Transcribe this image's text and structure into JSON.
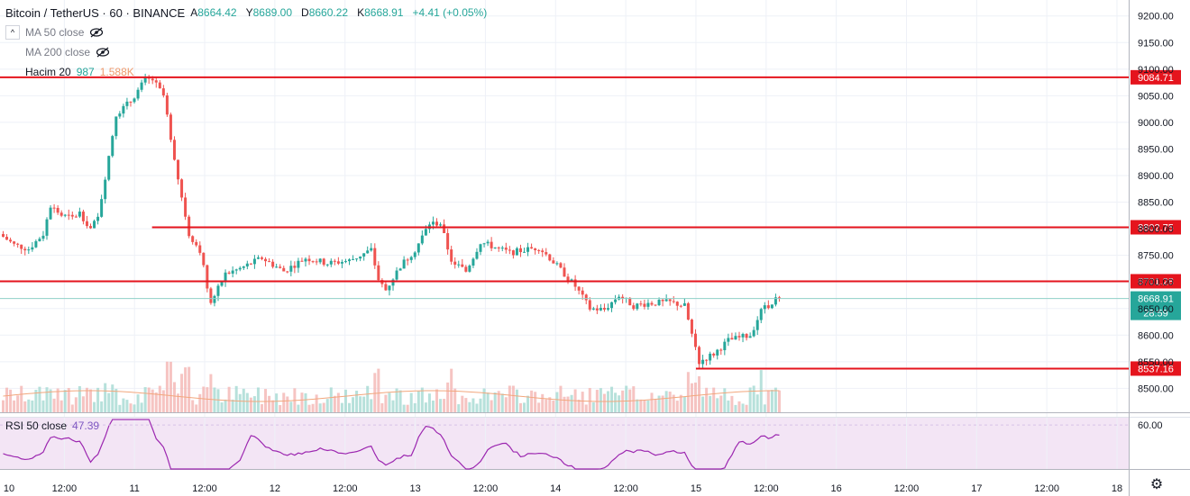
{
  "header": {
    "symbol": "Bitcoin / TetherUS",
    "interval": "60",
    "exchange": "BINANCE",
    "open_label": "A",
    "open": "8664.42",
    "high_label": "Y",
    "high": "8689.00",
    "low_label": "D",
    "low": "8660.22",
    "close_label": "K",
    "close": "8668.91",
    "change": "+4.41 (+0.05%)"
  },
  "indicators": {
    "ma50": "MA 50 close",
    "ma200": "MA 200 close",
    "volume_name": "Hacim 20",
    "volume_value": "987",
    "volume_ma_value": "1.588K",
    "rsi_name": "RSI 50 close",
    "rsi_value": "47.39"
  },
  "colors": {
    "up": "#26a69a",
    "down": "#ef5350",
    "level": "#e5141d",
    "rsi": "#9c27b0",
    "rsi_bg": "#f3e5f5",
    "vol_ma": "#f2a77d",
    "price_line": "#26a69a"
  },
  "chart_data": {
    "type": "candlestick",
    "title": "Bitcoin / TetherUS 60 BINANCE",
    "price_axis": {
      "ticks": [
        "9200.00",
        "9150.00",
        "9100.00",
        "9050.00",
        "9000.00",
        "8950.00",
        "8900.00",
        "8850.00",
        "8800.00",
        "8750.00",
        "8700.00",
        "8650.00",
        "8600.00",
        "8550.00",
        "8500.00"
      ],
      "range": [
        8455,
        9230
      ]
    },
    "time_axis": {
      "ticks": [
        "10",
        "12:00",
        "11",
        "12:00",
        "12",
        "12:00",
        "13",
        "12:00",
        "14",
        "12:00",
        "15",
        "12:00",
        "16",
        "12:00",
        "17",
        "12:00",
        "18"
      ],
      "tick_hours": [
        0,
        12,
        24,
        36,
        48,
        60,
        72,
        84,
        96,
        108,
        120,
        132,
        144,
        156,
        168,
        180,
        192
      ],
      "range_hours": [
        1,
        194
      ]
    },
    "horizontal_levels": [
      {
        "price": 9084.71,
        "label": "9084.71",
        "start_hour": 0
      },
      {
        "price": 8802.75,
        "label": "8802.75",
        "start_hour": 27
      },
      {
        "price": 8701.28,
        "label": "8701.28",
        "start_hour": 0
      },
      {
        "price": 8537.16,
        "label": "8537.16",
        "start_hour": 120
      }
    ],
    "last_price": {
      "price": 8668.91,
      "label": "8668.91",
      "countdown": "28:59"
    },
    "rsi_axis": {
      "ticks": [
        "60.00"
      ],
      "range": [
        44,
        63
      ]
    },
    "candle_hours_start": 0,
    "candle_step_hours": 1
  }
}
